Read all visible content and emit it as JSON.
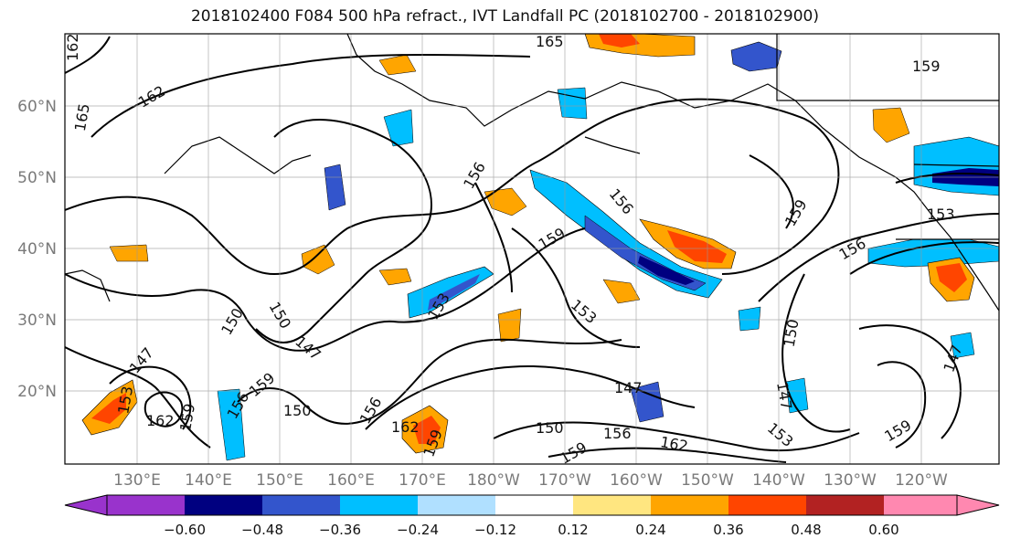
{
  "title": "2018102400 F084 500 hPa refract., IVT Landfall PC (2018102700 - 2018102900)",
  "lat_labels": [
    "60°N",
    "50°N",
    "40°N",
    "30°N",
    "20°N"
  ],
  "lon_labels": [
    "130°E",
    "140°E",
    "150°E",
    "160°E",
    "170°E",
    "180°W",
    "170°W",
    "160°W",
    "150°W",
    "140°W",
    "130°W",
    "120°W"
  ],
  "colorbar": {
    "tick_labels": [
      "−0.60",
      "−0.48",
      "−0.36",
      "−0.24",
      "−0.12",
      "0.12",
      "0.24",
      "0.36",
      "0.48",
      "0.60"
    ],
    "colors": [
      "#9933cc",
      "#000080",
      "#3355cc",
      "#00bfff",
      "#b0e0ff",
      "#ffffff",
      "#ffe680",
      "#ffa500",
      "#ff4500",
      "#b22222",
      "#ff88b0"
    ]
  },
  "contour_labels": [
    "162",
    "162",
    "165",
    "165",
    "159",
    "156",
    "156",
    "159",
    "159",
    "153",
    "156",
    "150",
    "150",
    "153",
    "153",
    "153",
    "147",
    "147",
    "150",
    "147",
    "147",
    "150",
    "162",
    "159",
    "156",
    "162",
    "159",
    "156",
    "159",
    "147",
    "159",
    "150",
    "156",
    "162",
    "153",
    "159"
  ],
  "fill_colors": {
    "neg_light": "#b0e0ff",
    "neg_mid": "#00bfff",
    "neg_strong": "#3355cc",
    "neg_max": "#000080",
    "pos_light": "#ffe680",
    "pos_mid": "#ffa500",
    "pos_strong": "#ff4500",
    "pos_max": "#b22222"
  }
}
